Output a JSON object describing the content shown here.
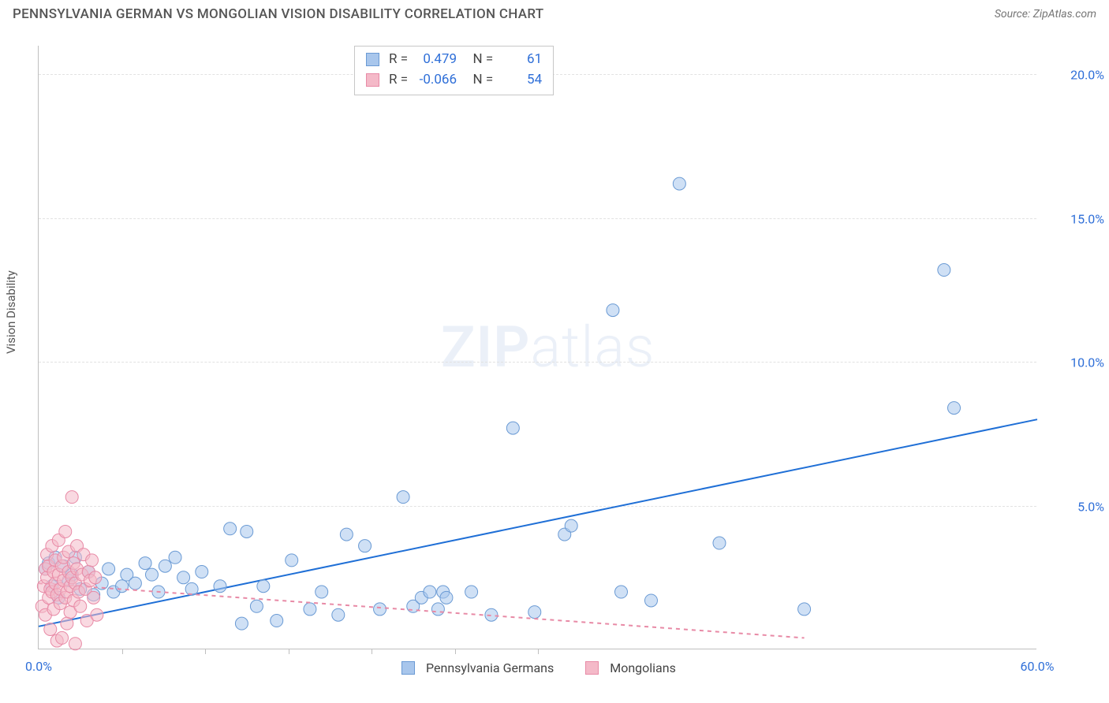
{
  "header": {
    "title": "PENNSYLVANIA GERMAN VS MONGOLIAN VISION DISABILITY CORRELATION CHART",
    "source_prefix": "Source: ",
    "source_name": "ZipAtlas.com"
  },
  "chart": {
    "type": "scatter",
    "ylabel": "Vision Disability",
    "watermark_zip": "ZIP",
    "watermark_atlas": "atlas",
    "xlim": [
      0,
      60
    ],
    "ylim": [
      0,
      21
    ],
    "xtick_minor_positions": [
      5,
      10,
      15,
      20,
      25,
      30
    ],
    "xtick_labels": [
      {
        "pos": 0,
        "label": "0.0%"
      },
      {
        "pos": 60,
        "label": "60.0%"
      }
    ],
    "ytick_labels": [
      {
        "pos": 5,
        "label": "5.0%"
      },
      {
        "pos": 10,
        "label": "10.0%"
      },
      {
        "pos": 15,
        "label": "15.0%"
      },
      {
        "pos": 20,
        "label": "20.0%"
      }
    ],
    "grid_color": "#e2e2e2",
    "axis_color": "#bfbfbf",
    "background_color": "#ffffff",
    "marker_radius": 8,
    "marker_opacity": 0.55,
    "line_width": 2,
    "series": [
      {
        "name": "Pennsylvania Germans",
        "color_fill": "#a8c6ec",
        "color_stroke": "#6a9ad4",
        "line_color": "#1f6fd6",
        "line_dash": "none",
        "r": "0.479",
        "n": "61",
        "trend": {
          "x1": 0,
          "y1": 0.8,
          "x2": 60,
          "y2": 8.0
        },
        "points": [
          [
            0.4,
            2.8
          ],
          [
            0.6,
            3.0
          ],
          [
            0.8,
            2.2
          ],
          [
            1.0,
            3.2
          ],
          [
            1.2,
            1.8
          ],
          [
            1.5,
            2.9
          ],
          [
            1.8,
            2.4
          ],
          [
            2.0,
            2.6
          ],
          [
            2.2,
            3.2
          ],
          [
            2.5,
            2.1
          ],
          [
            3.0,
            2.7
          ],
          [
            3.3,
            1.9
          ],
          [
            3.8,
            2.3
          ],
          [
            4.2,
            2.8
          ],
          [
            4.5,
            2.0
          ],
          [
            5.0,
            2.2
          ],
          [
            5.3,
            2.6
          ],
          [
            5.8,
            2.3
          ],
          [
            6.4,
            3.0
          ],
          [
            6.8,
            2.6
          ],
          [
            7.2,
            2.0
          ],
          [
            7.6,
            2.9
          ],
          [
            8.2,
            3.2
          ],
          [
            8.7,
            2.5
          ],
          [
            9.2,
            2.1
          ],
          [
            9.8,
            2.7
          ],
          [
            10.9,
            2.2
          ],
          [
            11.5,
            4.2
          ],
          [
            12.2,
            0.9
          ],
          [
            12.5,
            4.1
          ],
          [
            13.1,
            1.5
          ],
          [
            13.5,
            2.2
          ],
          [
            14.3,
            1.0
          ],
          [
            15.2,
            3.1
          ],
          [
            16.3,
            1.4
          ],
          [
            17.0,
            2.0
          ],
          [
            18.0,
            1.2
          ],
          [
            18.5,
            4.0
          ],
          [
            19.6,
            3.6
          ],
          [
            20.5,
            1.4
          ],
          [
            21.9,
            5.3
          ],
          [
            22.5,
            1.5
          ],
          [
            23.0,
            1.8
          ],
          [
            23.5,
            2.0
          ],
          [
            24.0,
            1.4
          ],
          [
            24.3,
            2.0
          ],
          [
            24.5,
            1.8
          ],
          [
            26.0,
            2.0
          ],
          [
            27.2,
            1.2
          ],
          [
            28.5,
            7.7
          ],
          [
            29.8,
            1.3
          ],
          [
            31.6,
            4.0
          ],
          [
            32.0,
            4.3
          ],
          [
            34.5,
            11.8
          ],
          [
            35.0,
            2.0
          ],
          [
            36.8,
            1.7
          ],
          [
            38.5,
            16.2
          ],
          [
            40.9,
            3.7
          ],
          [
            46.0,
            1.4
          ],
          [
            54.4,
            13.2
          ],
          [
            55.0,
            8.4
          ]
        ]
      },
      {
        "name": "Mongolians",
        "color_fill": "#f4b9c8",
        "color_stroke": "#e88aa6",
        "line_color": "#e88aa6",
        "line_dash": "5,5",
        "r": "-0.066",
        "n": "54",
        "trend": {
          "x1": 0,
          "y1": 2.3,
          "x2": 46,
          "y2": 0.4
        },
        "points": [
          [
            0.2,
            1.5
          ],
          [
            0.3,
            2.2
          ],
          [
            0.4,
            2.8
          ],
          [
            0.4,
            1.2
          ],
          [
            0.5,
            2.5
          ],
          [
            0.5,
            3.3
          ],
          [
            0.6,
            1.8
          ],
          [
            0.6,
            2.9
          ],
          [
            0.7,
            2.1
          ],
          [
            0.7,
            0.7
          ],
          [
            0.8,
            3.6
          ],
          [
            0.8,
            2.0
          ],
          [
            0.9,
            2.7
          ],
          [
            0.9,
            1.4
          ],
          [
            1.0,
            3.1
          ],
          [
            1.0,
            2.3
          ],
          [
            1.1,
            1.9
          ],
          [
            1.1,
            0.3
          ],
          [
            1.2,
            2.6
          ],
          [
            1.2,
            3.8
          ],
          [
            1.3,
            2.1
          ],
          [
            1.3,
            1.6
          ],
          [
            1.4,
            0.4
          ],
          [
            1.4,
            2.9
          ],
          [
            1.5,
            2.4
          ],
          [
            1.5,
            3.2
          ],
          [
            1.6,
            1.8
          ],
          [
            1.6,
            4.1
          ],
          [
            1.7,
            2.0
          ],
          [
            1.7,
            0.9
          ],
          [
            1.8,
            2.7
          ],
          [
            1.8,
            3.4
          ],
          [
            1.9,
            2.2
          ],
          [
            1.9,
            1.3
          ],
          [
            2.0,
            5.3
          ],
          [
            2.0,
            2.5
          ],
          [
            2.1,
            1.7
          ],
          [
            2.1,
            3.0
          ],
          [
            2.2,
            2.3
          ],
          [
            2.2,
            0.2
          ],
          [
            2.3,
            2.8
          ],
          [
            2.3,
            3.6
          ],
          [
            2.4,
            2.0
          ],
          [
            2.5,
            1.5
          ],
          [
            2.6,
            2.6
          ],
          [
            2.7,
            3.3
          ],
          [
            2.8,
            2.1
          ],
          [
            2.9,
            1.0
          ],
          [
            3.0,
            2.7
          ],
          [
            3.1,
            2.4
          ],
          [
            3.2,
            3.1
          ],
          [
            3.3,
            1.8
          ],
          [
            3.4,
            2.5
          ],
          [
            3.5,
            1.2
          ]
        ]
      }
    ],
    "legend": {
      "stats_labels": {
        "r": "R =",
        "n": "N ="
      }
    }
  }
}
